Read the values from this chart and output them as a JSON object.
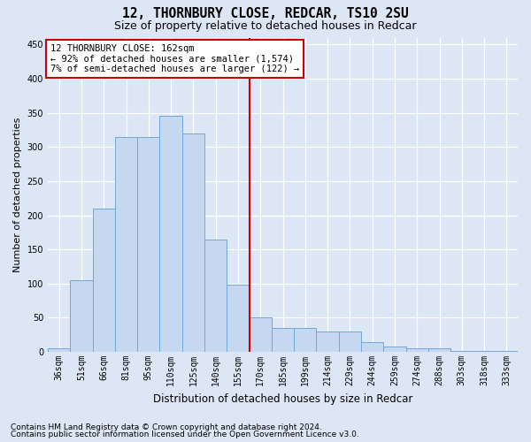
{
  "title": "12, THORNBURY CLOSE, REDCAR, TS10 2SU",
  "subtitle": "Size of property relative to detached houses in Redcar",
  "xlabel": "Distribution of detached houses by size in Redcar",
  "ylabel": "Number of detached properties",
  "categories": [
    "36sqm",
    "51sqm",
    "66sqm",
    "81sqm",
    "95sqm",
    "110sqm",
    "125sqm",
    "140sqm",
    "155sqm",
    "170sqm",
    "185sqm",
    "199sqm",
    "214sqm",
    "229sqm",
    "244sqm",
    "259sqm",
    "274sqm",
    "288sqm",
    "303sqm",
    "318sqm",
    "333sqm"
  ],
  "values": [
    5,
    105,
    210,
    315,
    315,
    345,
    320,
    165,
    98,
    50,
    35,
    35,
    30,
    30,
    15,
    8,
    5,
    5,
    1,
    1,
    1
  ],
  "bar_color": "#c5d8f0",
  "bar_edge_color": "#6fa8d6",
  "vline_x": 9,
  "vline_color": "#cc0000",
  "annotation_text": "12 THORNBURY CLOSE: 162sqm\n← 92% of detached houses are smaller (1,574)\n7% of semi-detached houses are larger (122) →",
  "annotation_box_color": "#ffffff",
  "annotation_box_edge_color": "#cc0000",
  "footnote1": "Contains HM Land Registry data © Crown copyright and database right 2024.",
  "footnote2": "Contains public sector information licensed under the Open Government Licence v3.0.",
  "ylim": [
    0,
    460
  ],
  "yticks": [
    0,
    50,
    100,
    150,
    200,
    250,
    300,
    350,
    400,
    450
  ],
  "background_color": "#dce6f5",
  "grid_color": "#ffffff",
  "title_fontsize": 10.5,
  "subtitle_fontsize": 9,
  "ylabel_fontsize": 8,
  "xlabel_fontsize": 8.5,
  "tick_fontsize": 7,
  "footnote_fontsize": 6.5
}
